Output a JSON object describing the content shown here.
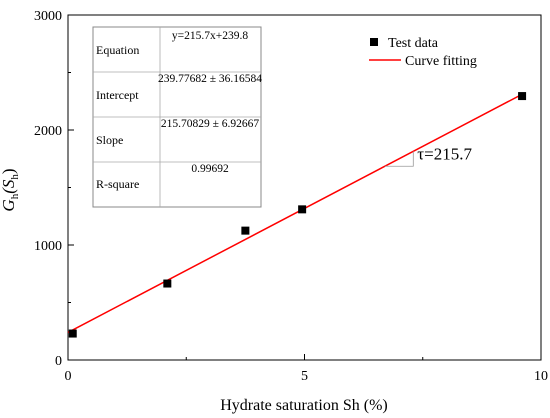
{
  "chart_data": {
    "type": "scatter",
    "title": "",
    "xlabel": "Hydrate saturation Sh (%)",
    "ylabel": {
      "main": "G",
      "sub1": "h",
      "paren_open": "(S",
      "sub2": "h",
      "paren_close": ")"
    },
    "xlim": [
      0,
      10
    ],
    "ylim": [
      0,
      3000
    ],
    "x_ticks": [
      0,
      5,
      10
    ],
    "y_ticks": [
      0,
      1000,
      2000,
      3000
    ],
    "grid": false,
    "legend_position": "top-right",
    "series": [
      {
        "name": "Test data",
        "kind": "points",
        "color": "#000000",
        "x": [
          0.1,
          2.1,
          3.75,
          4.95,
          9.6
        ],
        "y": [
          230,
          665,
          1125,
          1310,
          2295
        ]
      },
      {
        "name": "Curve fitting",
        "kind": "line",
        "color": "#ff0000",
        "slope": 215.7,
        "intercept": 239.8,
        "x_range": [
          0,
          9.6
        ]
      }
    ],
    "stats_table": {
      "rows": [
        {
          "label": "Equation",
          "value": "y=215.7x+239.8"
        },
        {
          "label": "Intercept",
          "value": "239.77682 ± 36.16584"
        },
        {
          "label": "Slope",
          "value": "215.70829 ± 6.92667"
        },
        {
          "label": "R-square",
          "value": "0.99692"
        }
      ]
    },
    "annotation": {
      "text": "τ=215.7",
      "at_x": 7.3
    }
  }
}
